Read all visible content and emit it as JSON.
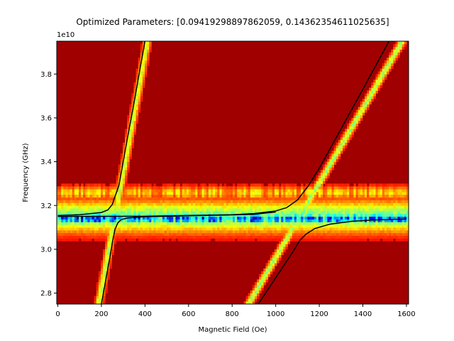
{
  "chart_data": {
    "type": "heatmap",
    "title": "Optimized Parameters: [0.09419298897862059, 0.14362354611025635]",
    "xlabel": "Magnetic Field (Oe)",
    "ylabel": "Frequency (GHz)",
    "y_offset_label": "1e10",
    "xlim": [
      -5,
      1610
    ],
    "ylim": [
      2.75,
      3.95
    ],
    "y_scale_factor": 10000000000.0,
    "x_ticks": [
      0,
      200,
      400,
      600,
      800,
      1000,
      1200,
      1400,
      1600
    ],
    "x_tick_labels": [
      "0",
      "200",
      "400",
      "600",
      "800",
      "1000",
      "1200",
      "1400",
      "1600"
    ],
    "y_ticks": [
      2.8,
      3.0,
      3.2,
      3.4,
      3.6,
      3.8
    ],
    "y_tick_labels": [
      "2.8",
      "3.0",
      "3.2",
      "3.4",
      "3.6",
      "3.8"
    ],
    "colormap": "jet",
    "background_color": "#a00000",
    "grid": false,
    "resonance_features": {
      "cavity_mode_frequency": 3.15,
      "left_mode_line": {
        "slope_per_oe": 0.0054,
        "anchor_field": 262
      },
      "right_mode_line": {
        "slope_per_oe": 0.0017,
        "anchor_field": 1110
      }
    },
    "series": [
      {
        "description": "fitted upper branch (left crossing)",
        "color": "#000000",
        "x": [
          0,
          100,
          200,
          230,
          250,
          262,
          280,
          300,
          320,
          350,
          380,
          400
        ],
        "y": [
          3.154,
          3.158,
          3.168,
          3.18,
          3.205,
          3.24,
          3.29,
          3.4,
          3.51,
          3.67,
          3.84,
          3.95
        ]
      },
      {
        "description": "fitted lower branch (left crossing)",
        "color": "#000000",
        "x": [
          200,
          220,
          240,
          250,
          262,
          275,
          290,
          320,
          400,
          600,
          800,
          900,
          1000
        ],
        "y": [
          2.75,
          2.86,
          2.97,
          3.03,
          3.09,
          3.12,
          3.135,
          3.143,
          3.149,
          3.153,
          3.157,
          3.16,
          3.17
        ]
      },
      {
        "description": "fitted upper branch (right crossing)",
        "color": "#000000",
        "x": [
          0,
          400,
          800,
          900,
          1000,
          1050,
          1100,
          1150,
          1200,
          1300,
          1400,
          1520
        ],
        "y": [
          3.15,
          3.151,
          3.158,
          3.163,
          3.175,
          3.19,
          3.225,
          3.29,
          3.37,
          3.55,
          3.73,
          3.95
        ]
      },
      {
        "description": "fitted lower branch (right crossing)",
        "color": "#000000",
        "x": [
          920,
          980,
          1040,
          1080,
          1110,
          1140,
          1180,
          1250,
          1350,
          1450,
          1600
        ],
        "y": [
          2.75,
          2.84,
          2.93,
          2.99,
          3.04,
          3.07,
          3.095,
          3.115,
          3.128,
          3.134,
          3.138
        ]
      }
    ]
  }
}
